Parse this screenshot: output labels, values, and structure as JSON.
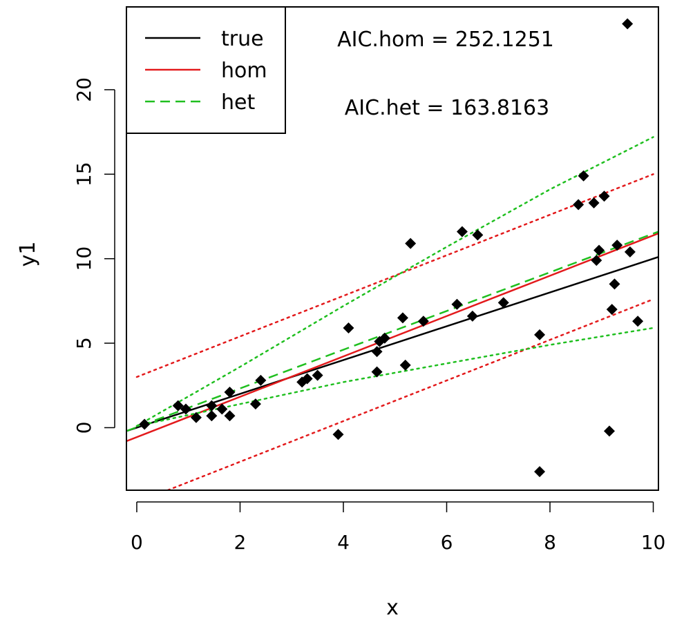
{
  "chart_data": {
    "type": "scatter",
    "title": "",
    "xlabel": "x",
    "ylabel": "y1",
    "xlim": [
      -0.2,
      10.1
    ],
    "ylim": [
      -3.7,
      24.9
    ],
    "x_ticks": [
      0,
      2,
      4,
      6,
      8,
      10
    ],
    "y_ticks": [
      0,
      5,
      10,
      15,
      20
    ],
    "grid": false,
    "legend": {
      "position": "top-left",
      "entries": [
        {
          "name": "true",
          "color": "#000000",
          "style": "solid"
        },
        {
          "name": "hom",
          "color": "#e31a1c",
          "style": "solid"
        },
        {
          "name": "het",
          "color": "#1fbf1f",
          "style": "dashed"
        }
      ]
    },
    "annotations": [
      {
        "text": "AIC.hom = 252.1251",
        "x": 6.3,
        "y": 23.4
      },
      {
        "text": "AIC.het = 163.8163",
        "x": 6.3,
        "y": 19.3
      }
    ],
    "points": {
      "marker": "diamond",
      "color": "#000000",
      "x": [
        0.15,
        0.8,
        0.95,
        1.15,
        1.45,
        1.45,
        1.65,
        1.8,
        1.8,
        2.3,
        2.4,
        3.2,
        3.3,
        3.5,
        3.9,
        4.1,
        4.65,
        4.65,
        4.7,
        4.8,
        5.15,
        5.2,
        5.3,
        5.55,
        6.2,
        6.3,
        6.5,
        6.6,
        7.1,
        7.8,
        7.8,
        8.55,
        8.65,
        8.85,
        8.9,
        8.95,
        9.05,
        9.15,
        9.2,
        9.25,
        9.3,
        9.5,
        9.55,
        9.7
      ],
      "y": [
        0.2,
        1.3,
        1.1,
        0.6,
        0.7,
        1.3,
        1.1,
        0.7,
        2.1,
        1.4,
        2.8,
        2.7,
        2.9,
        3.1,
        -0.4,
        5.9,
        3.3,
        4.5,
        5.1,
        5.3,
        6.5,
        3.7,
        10.9,
        6.3,
        7.3,
        11.6,
        6.6,
        11.4,
        7.4,
        5.5,
        -2.6,
        13.2,
        14.9,
        13.3,
        9.9,
        10.5,
        13.7,
        -0.2,
        7.0,
        8.5,
        10.8,
        23.9,
        10.4,
        6.3
      ]
    },
    "series": [
      {
        "name": "true",
        "color": "#000000",
        "style": "solid",
        "x": [
          -0.2,
          10.1
        ],
        "y": [
          -0.2,
          10.1
        ]
      },
      {
        "name": "hom",
        "color": "#e31a1c",
        "style": "solid",
        "x": [
          -0.2,
          10.1
        ],
        "y": [
          -0.8,
          11.5
        ]
      },
      {
        "color": "#e31a1c",
        "style": "dotted",
        "x": [
          0,
          10
        ],
        "y": [
          3.0,
          15.0
        ]
      },
      {
        "color": "#e31a1c",
        "style": "dotted",
        "x": [
          0.6,
          10
        ],
        "y": [
          -3.7,
          7.6
        ]
      },
      {
        "name": "het",
        "color": "#1fbf1f",
        "style": "dashed",
        "x": [
          -0.2,
          10.1
        ],
        "y": [
          -0.2,
          11.6
        ]
      },
      {
        "color": "#1fbf1f",
        "style": "dotted",
        "x": [
          0,
          2,
          4,
          6,
          8,
          10
        ],
        "y": [
          0.1,
          3.6,
          7.2,
          10.7,
          14.1,
          17.2
        ]
      },
      {
        "color": "#1fbf1f",
        "style": "dotted",
        "x": [
          0,
          2,
          4,
          6,
          8,
          10
        ],
        "y": [
          0.1,
          1.4,
          2.7,
          3.8,
          4.9,
          5.9
        ]
      }
    ]
  }
}
